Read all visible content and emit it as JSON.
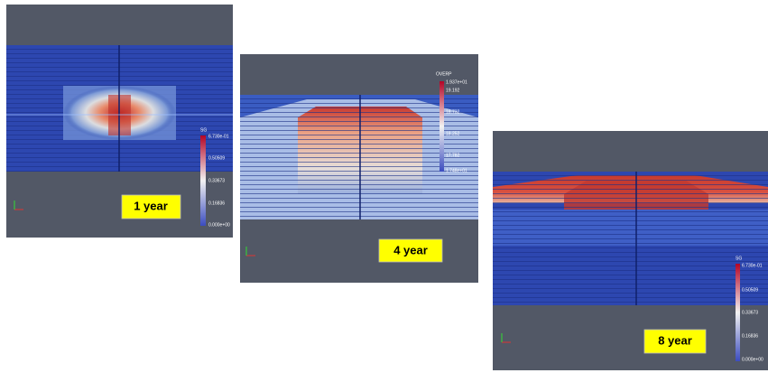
{
  "panels": [
    {
      "label": "1 year",
      "legend": {
        "title": "SG",
        "labels": [
          "6.730e-01",
          "0.50509",
          "0.33673",
          "0.16836",
          "0.000e+00"
        ]
      }
    },
    {
      "label": "4 year",
      "legend": {
        "title": "OVERP",
        "labels": [
          "1.937e+01",
          "19.192",
          "18.732",
          "18.252",
          "17.782",
          "1.748e+01"
        ]
      }
    },
    {
      "label": "8 year",
      "legend": {
        "title": "SG",
        "labels": [
          "6.730e-01",
          "0.50509",
          "0.33673",
          "0.16836",
          "0.000e+00"
        ]
      }
    }
  ]
}
